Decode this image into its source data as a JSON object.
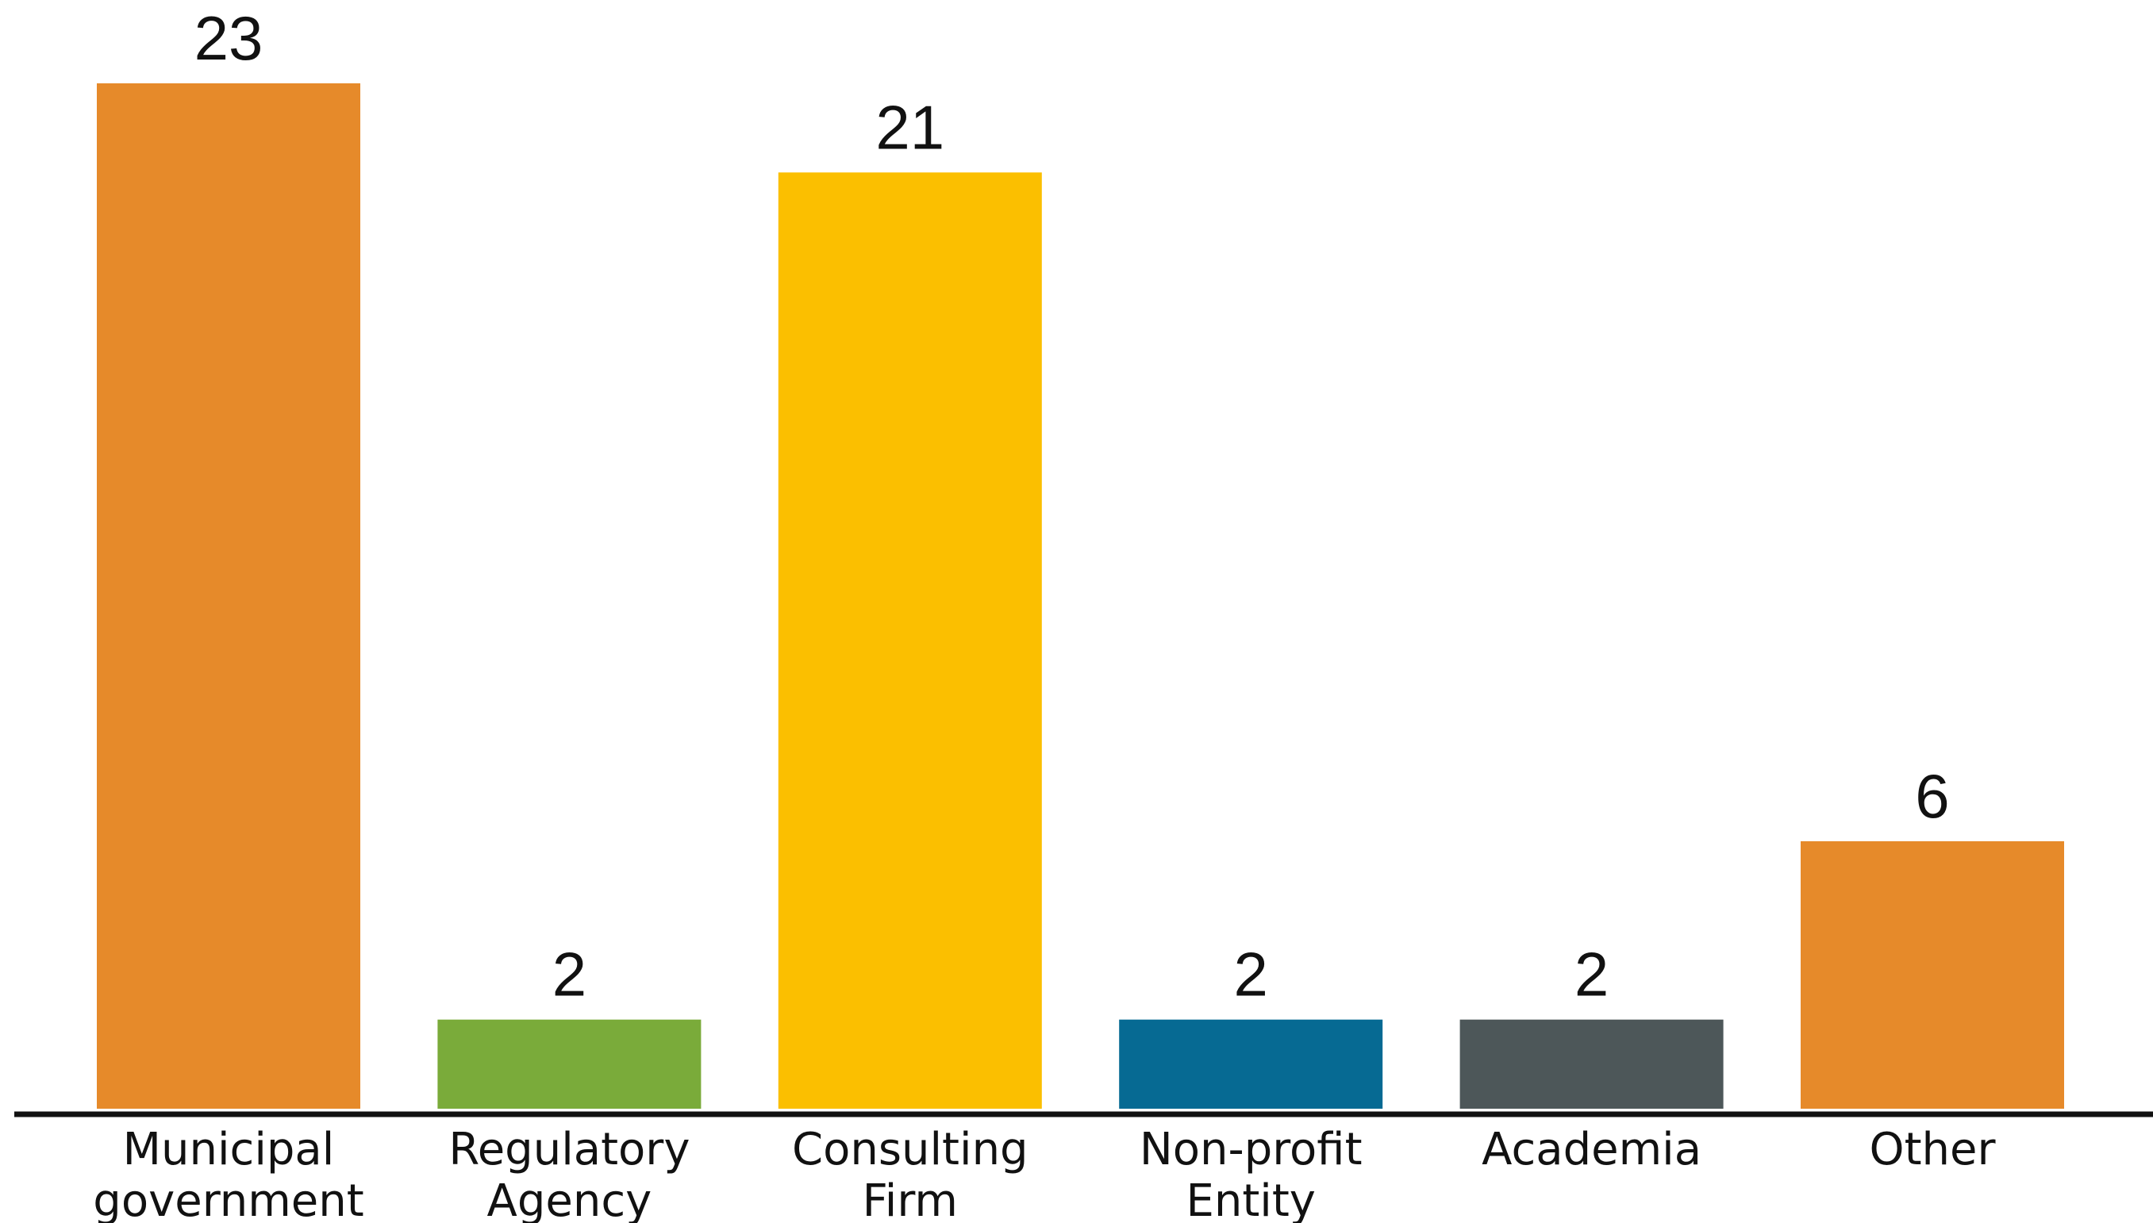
{
  "chart_data": {
    "type": "bar",
    "title": "",
    "xlabel": "",
    "ylabel": "",
    "ylim": [
      0,
      23
    ],
    "grid": false,
    "legend": "none",
    "categories": [
      [
        "Municipal",
        "government"
      ],
      [
        "Regulatory",
        "Agency"
      ],
      [
        "Consulting",
        "Firm"
      ],
      [
        "Non-profit",
        "Entity"
      ],
      [
        "Academia"
      ],
      [
        "Other"
      ]
    ],
    "values": [
      23,
      2,
      21,
      2,
      2,
      6
    ],
    "value_labels": [
      "23",
      "2",
      "21",
      "2",
      "2",
      "6"
    ],
    "colors": [
      "#E68A2A",
      "#7AAB3A",
      "#FBBF00",
      "#066A93",
      "#4D5759",
      "#E68A2A"
    ],
    "axis_color": "#111111"
  }
}
